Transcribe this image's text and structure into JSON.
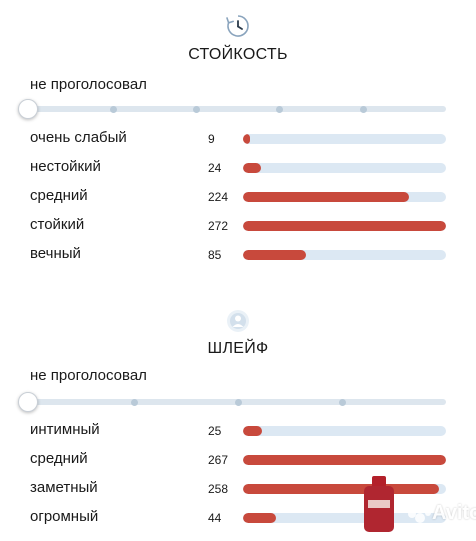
{
  "sections": [
    {
      "title": "СТОЙКОСТЬ",
      "icon": "clock-history-icon",
      "not_voted": "не проголосовал",
      "slider_stops": 5,
      "selected_index": 0,
      "rows": [
        {
          "label": "очень слабый",
          "count": "9",
          "share": 0.033
        },
        {
          "label": "нестойкий",
          "count": "24",
          "share": 0.088
        },
        {
          "label": "средний",
          "count": "224",
          "share": 0.82
        },
        {
          "label": "стойкий",
          "count": "272",
          "share": 1.0
        },
        {
          "label": "вечный",
          "count": "85",
          "share": 0.31
        }
      ]
    },
    {
      "title": "ШЛЕЙФ",
      "icon": "person-aura-icon",
      "not_voted": "не проголосовал",
      "slider_stops": 4,
      "selected_index": 0,
      "rows": [
        {
          "label": "интимный",
          "count": "25",
          "share": 0.094
        },
        {
          "label": "средний",
          "count": "267",
          "share": 1.0
        },
        {
          "label": "заметный",
          "count": "258",
          "share": 0.966
        },
        {
          "label": "огромный",
          "count": "44",
          "share": 0.165
        }
      ]
    }
  ],
  "colors": {
    "bar": "#c8493c",
    "track": "#dce8f3",
    "slider": "#dde6ee"
  },
  "watermark": {
    "text": "Avito"
  }
}
